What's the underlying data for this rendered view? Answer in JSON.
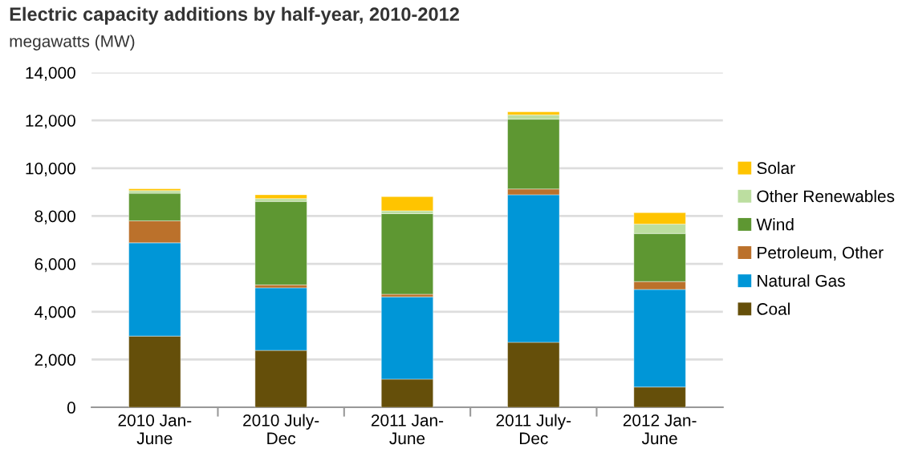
{
  "chart_data": {
    "type": "bar",
    "stacked": true,
    "title": "Electric capacity additions by half-year, 2010-2012",
    "subtitle": "megawatts (MW)",
    "categories": [
      "2010 Jan-\nJune",
      "2010 July-\nDec",
      "2011 Jan-\nJune",
      "2011 July-\nDec",
      "2012 Jan-\nJune"
    ],
    "series": [
      {
        "name": "Coal",
        "color": "#654f0a",
        "values": [
          2980,
          2380,
          1180,
          2720,
          850
        ]
      },
      {
        "name": "Natural Gas",
        "color": "#0096d7",
        "values": [
          3900,
          2620,
          3440,
          6170,
          4080
        ]
      },
      {
        "name": "Petroleum, Other",
        "color": "#bb712b",
        "values": [
          920,
          120,
          110,
          240,
          330
        ]
      },
      {
        "name": "Wind",
        "color": "#5e9732",
        "values": [
          1150,
          3490,
          3370,
          2920,
          2010
        ]
      },
      {
        "name": "Other Renewables",
        "color": "#bcdea0",
        "values": [
          110,
          120,
          120,
          180,
          390
        ]
      },
      {
        "name": "Solar",
        "color": "#ffc400",
        "values": [
          80,
          160,
          590,
          130,
          480
        ]
      }
    ],
    "ylim": [
      0,
      14000
    ],
    "yticks": [
      {
        "value": 0,
        "label": "0"
      },
      {
        "value": 2000,
        "label": "2,000"
      },
      {
        "value": 4000,
        "label": "4,000"
      },
      {
        "value": 6000,
        "label": "6,000"
      },
      {
        "value": 8000,
        "label": "8,000"
      },
      {
        "value": 10000,
        "label": "10,000"
      },
      {
        "value": 12000,
        "label": "12,000"
      },
      {
        "value": 14000,
        "label": "14,000"
      }
    ],
    "grid": "y",
    "legend": "right"
  }
}
